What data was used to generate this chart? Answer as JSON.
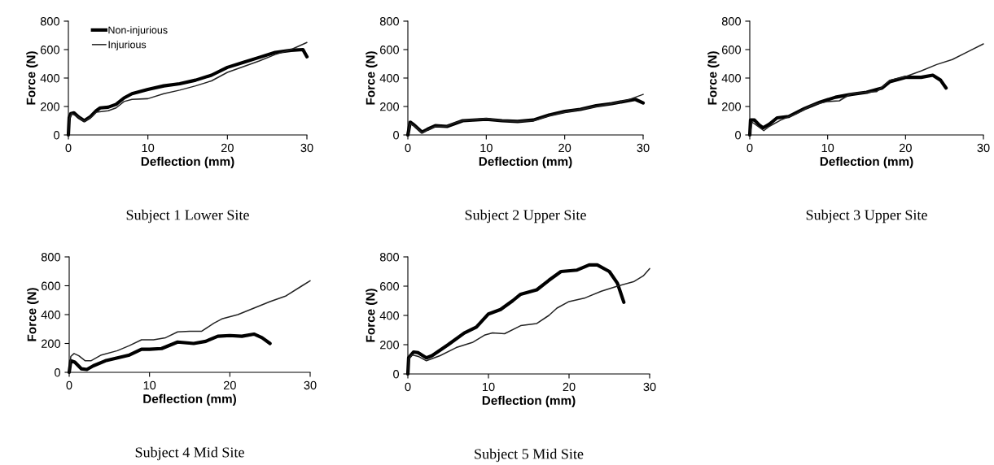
{
  "chart_data": [
    {
      "type": "line",
      "title": "Subject 1 Lower Site",
      "xlabel": "Deflection (mm)",
      "ylabel": "Force (N)",
      "xlim": [
        0,
        30
      ],
      "xticks": [
        0,
        10,
        20,
        30
      ],
      "ylim": [
        0,
        800
      ],
      "yticks": [
        0,
        200,
        400,
        600,
        800
      ],
      "grid": false,
      "legend": "top left",
      "series": [
        {
          "name": "Non-injurious",
          "color": "#000000",
          "x": [
            0,
            0.1,
            0.3,
            0.7,
            1.3,
            2,
            2.7,
            3.5,
            4,
            5,
            6,
            7,
            8,
            10,
            12,
            14,
            16,
            18,
            20,
            22,
            24,
            26,
            28,
            29.5,
            30
          ],
          "values": [
            0,
            120,
            150,
            155,
            125,
            100,
            125,
            170,
            190,
            195,
            215,
            260,
            290,
            320,
            345,
            360,
            385,
            420,
            475,
            510,
            545,
            580,
            595,
            600,
            550
          ]
        },
        {
          "name": "Injurious",
          "color": "#222222",
          "x": [
            0,
            0.1,
            0.4,
            1,
            2,
            3,
            3.5,
            5,
            6,
            7,
            8,
            10,
            12,
            14,
            16,
            18,
            20,
            22,
            24,
            26,
            28,
            30
          ],
          "values": [
            0,
            110,
            150,
            135,
            95,
            130,
            160,
            170,
            190,
            235,
            250,
            255,
            290,
            315,
            345,
            380,
            440,
            480,
            520,
            565,
            600,
            650
          ]
        }
      ]
    },
    {
      "type": "line",
      "title": "Subject 2 Upper Site",
      "xlabel": "Deflection (mm)",
      "ylabel": "Force (N)",
      "xlim": [
        0,
        30
      ],
      "xticks": [
        0,
        10,
        20,
        30
      ],
      "ylim": [
        0,
        800
      ],
      "yticks": [
        0,
        200,
        400,
        600,
        800
      ],
      "grid": false,
      "series": [
        {
          "color": "#000000",
          "x": [
            0,
            0.3,
            0.8,
            1.8,
            2.5,
            3.5,
            5,
            6,
            7,
            10,
            12,
            14,
            16,
            18,
            20,
            22,
            24,
            26,
            28,
            29,
            30
          ],
          "values": [
            0,
            90,
            70,
            20,
            40,
            65,
            60,
            80,
            100,
            110,
            100,
            95,
            105,
            140,
            165,
            180,
            205,
            220,
            240,
            250,
            225
          ]
        },
        {
          "color": "#222222",
          "x": [
            0,
            0.3,
            0.8,
            1.8,
            2.5,
            3.5,
            5,
            6,
            7,
            10,
            12,
            14,
            16,
            18,
            20,
            22,
            24,
            26,
            28,
            30
          ],
          "values": [
            0,
            80,
            65,
            15,
            35,
            60,
            62,
            85,
            100,
            115,
            100,
            95,
            100,
            135,
            160,
            180,
            200,
            220,
            245,
            285
          ]
        }
      ]
    },
    {
      "type": "line",
      "title": "Subject 3 Upper Site",
      "xlabel": "Deflection (mm)",
      "ylabel": "Force (N)",
      "xlim": [
        0,
        30
      ],
      "xticks": [
        0,
        10,
        20,
        30
      ],
      "ylim": [
        0,
        800
      ],
      "yticks": [
        0,
        200,
        400,
        600,
        800
      ],
      "grid": false,
      "series": [
        {
          "color": "#000000",
          "x": [
            0,
            0.1,
            0.6,
            1.2,
            1.7,
            2.5,
            3.5,
            5,
            7,
            9,
            11,
            13,
            15,
            17,
            18,
            20,
            22,
            23.5,
            24.5,
            25.2
          ],
          "values": [
            0,
            105,
            105,
            70,
            50,
            75,
            120,
            130,
            185,
            230,
            265,
            285,
            300,
            330,
            375,
            405,
            405,
            420,
            385,
            330
          ]
        },
        {
          "color": "#222222",
          "x": [
            0,
            0.3,
            0.8,
            1.8,
            2.5,
            4,
            6,
            8,
            10,
            11.5,
            13,
            15,
            16.3,
            18,
            20,
            22,
            24,
            26,
            28,
            30
          ],
          "values": [
            0,
            90,
            70,
            30,
            60,
            105,
            150,
            210,
            235,
            240,
            290,
            300,
            305,
            385,
            410,
            450,
            495,
            530,
            585,
            640
          ]
        }
      ]
    },
    {
      "type": "line",
      "title": "Subject 4 Mid Site",
      "xlabel": "Deflection (mm)",
      "ylabel": "Force (N)",
      "xlim": [
        0,
        30
      ],
      "xticks": [
        0,
        10,
        20,
        30
      ],
      "ylim": [
        0,
        800
      ],
      "yticks": [
        0,
        200,
        400,
        600,
        800
      ],
      "grid": false,
      "series": [
        {
          "color": "#000000",
          "x": [
            0,
            0.2,
            0.7,
            1.5,
            2.2,
            3,
            4.5,
            6,
            7.5,
            9,
            10,
            11.5,
            13.5,
            15.5,
            17,
            18.5,
            20,
            21.5,
            23,
            24,
            25
          ],
          "values": [
            0,
            80,
            70,
            25,
            20,
            45,
            80,
            100,
            120,
            160,
            160,
            165,
            210,
            200,
            215,
            250,
            255,
            250,
            265,
            240,
            200
          ]
        },
        {
          "color": "#222222",
          "x": [
            0,
            0.2,
            0.6,
            1.2,
            2,
            2.7,
            4,
            6,
            7.5,
            9,
            10.5,
            12,
            13.5,
            15,
            16.5,
            18,
            19,
            21,
            23,
            25,
            27,
            29,
            30
          ],
          "values": [
            0,
            110,
            130,
            115,
            80,
            80,
            120,
            150,
            185,
            225,
            225,
            240,
            280,
            285,
            285,
            340,
            370,
            400,
            445,
            490,
            530,
            600,
            635
          ]
        }
      ]
    },
    {
      "type": "line",
      "title": "Subject 5 Mid Site",
      "xlabel": "Deflection (mm)",
      "ylabel": "Force (N)",
      "xlim": [
        0,
        30
      ],
      "xticks": [
        0,
        10,
        20,
        30
      ],
      "ylim": [
        0,
        800
      ],
      "yticks": [
        0,
        200,
        400,
        600,
        800
      ],
      "grid": false,
      "series": [
        {
          "color": "#000000",
          "x": [
            0,
            0.1,
            0.7,
            1.3,
            2.3,
            3,
            5,
            7,
            8.5,
            10,
            11.5,
            13,
            14,
            16,
            17.5,
            19,
            21,
            22.5,
            23.5,
            25,
            26,
            26.8
          ],
          "values": [
            0,
            110,
            150,
            145,
            110,
            125,
            200,
            280,
            320,
            410,
            440,
            500,
            545,
            575,
            640,
            700,
            710,
            745,
            745,
            700,
            620,
            490
          ]
        },
        {
          "color": "#222222",
          "x": [
            0,
            0.1,
            0.5,
            1.3,
            2.3,
            4,
            6,
            8,
            9.5,
            10.5,
            12,
            14,
            16,
            17.5,
            18.5,
            20,
            22,
            24,
            26,
            28,
            29.2,
            30
          ],
          "values": [
            0,
            100,
            130,
            120,
            90,
            125,
            180,
            215,
            265,
            280,
            275,
            330,
            345,
            400,
            450,
            495,
            520,
            565,
            600,
            630,
            670,
            720
          ]
        }
      ]
    }
  ]
}
